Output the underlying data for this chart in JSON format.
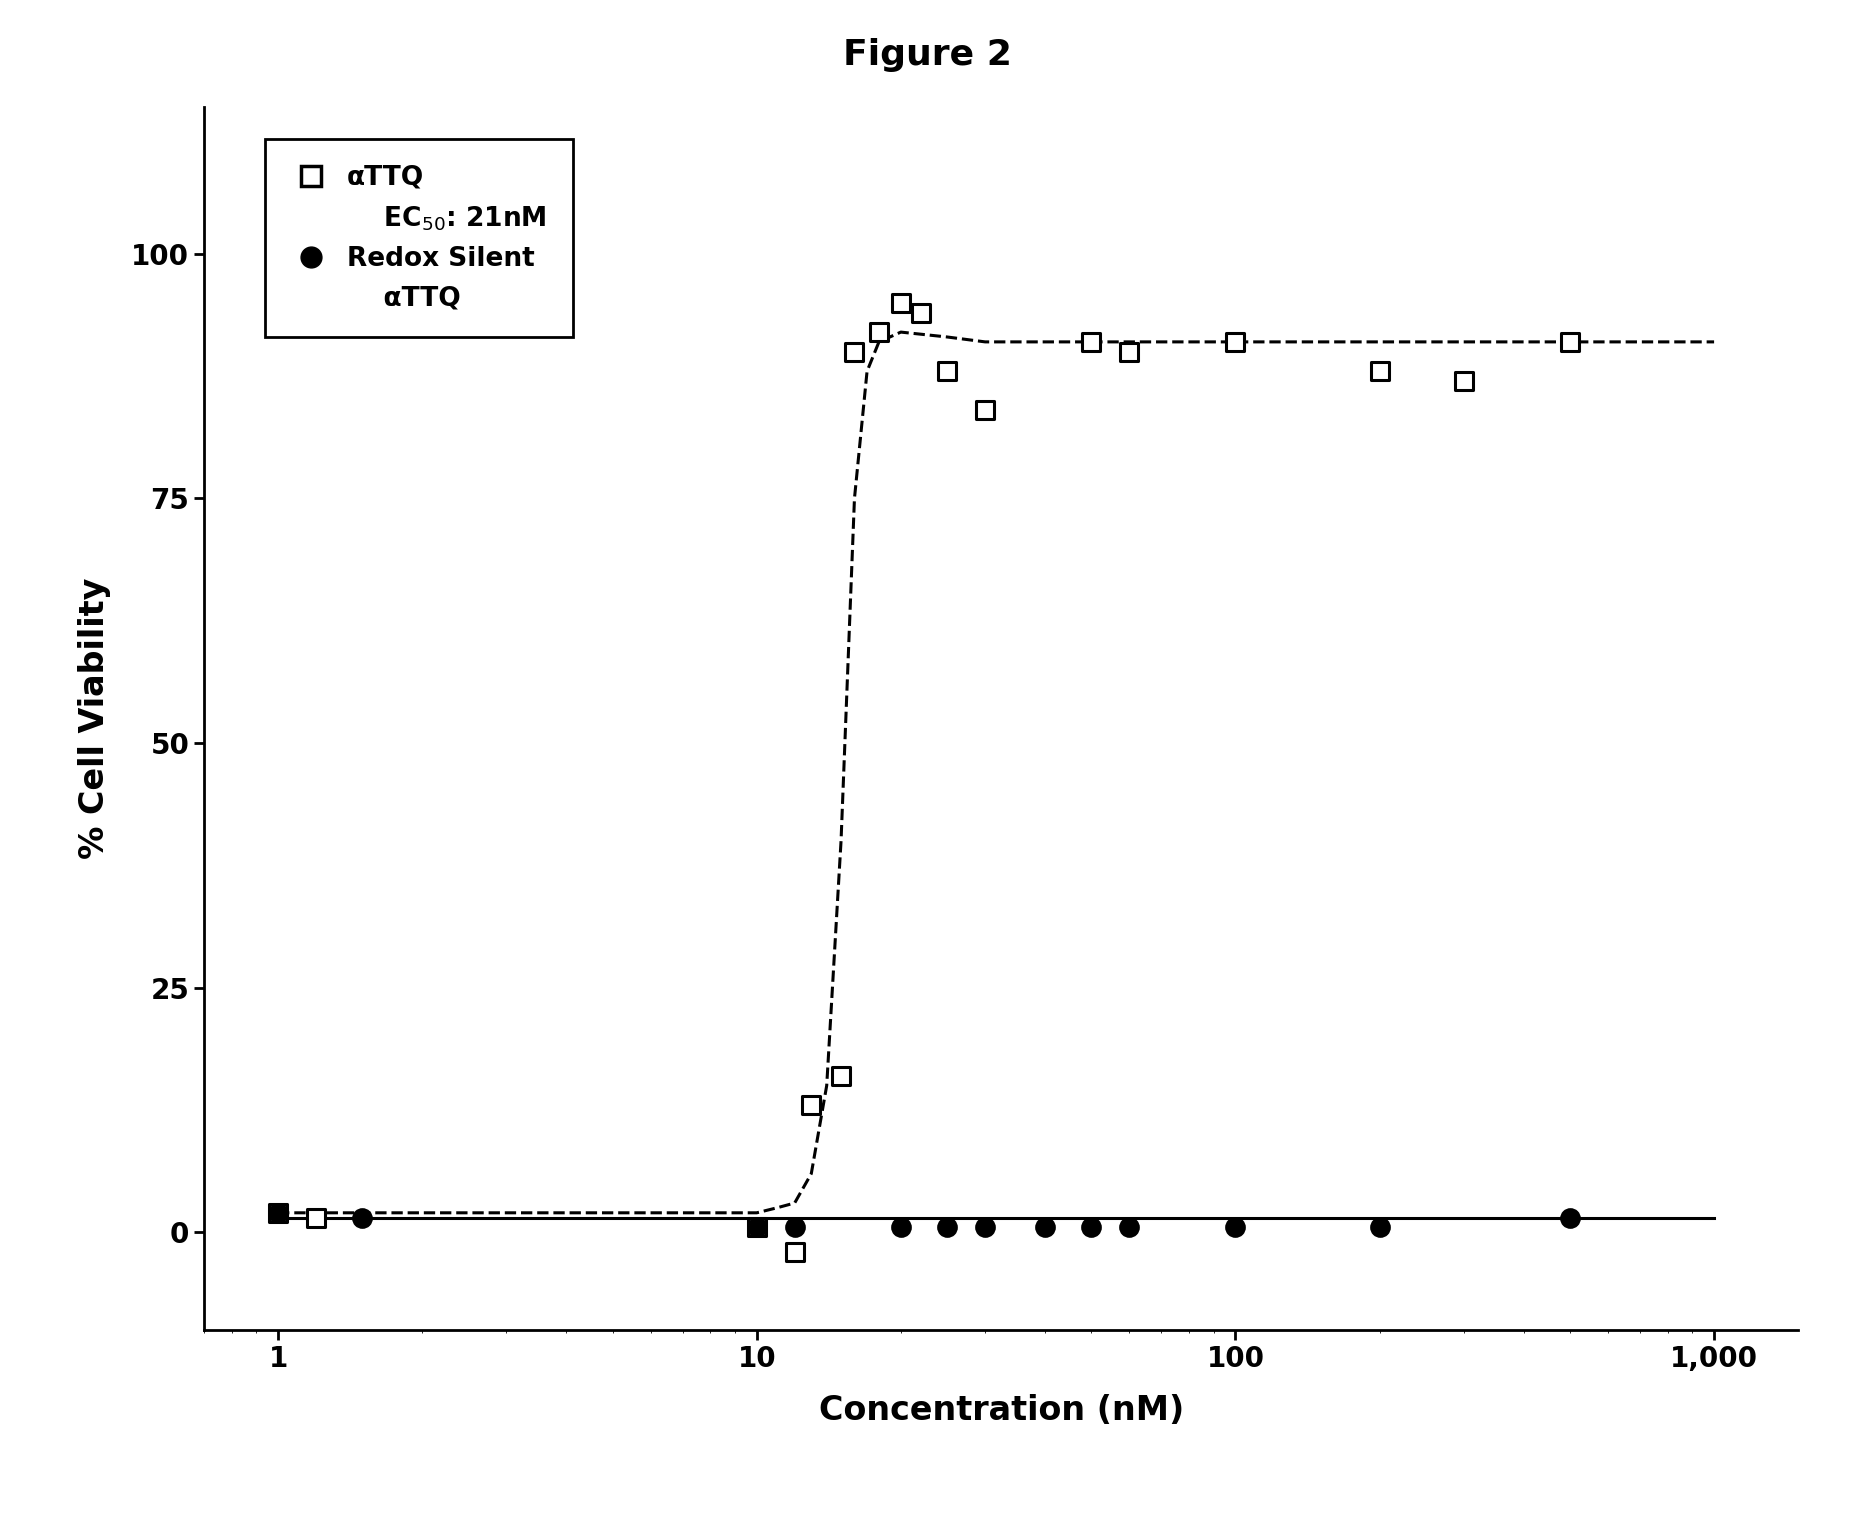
{
  "title": "Figure 2",
  "xlabel": "Concentration (nM)",
  "ylabel": "% Cell Viability",
  "ylim": [
    -10,
    115
  ],
  "yticks": [
    0,
    25,
    50,
    75,
    100
  ],
  "xtick_positions": [
    1,
    10,
    100,
    1000
  ],
  "xtick_labels": [
    "1",
    "10",
    "100",
    "1,000"
  ],
  "attq_scatter_x": [
    1.0,
    1.2,
    10.0,
    12.0,
    13.0,
    15.0,
    16.0,
    18.0,
    20.0,
    22.0,
    25.0,
    30.0,
    50.0,
    60.0,
    100.0,
    200.0,
    300.0,
    500.0
  ],
  "attq_scatter_y": [
    2.0,
    1.5,
    0.5,
    -2.0,
    13.0,
    16.0,
    90.0,
    92.0,
    95.0,
    94.0,
    88.0,
    84.0,
    91.0,
    90.0,
    91.0,
    88.0,
    87.0,
    91.0
  ],
  "redox_scatter_x": [
    1.0,
    1.5,
    10.0,
    12.0,
    20.0,
    25.0,
    30.0,
    40.0,
    50.0,
    60.0,
    100.0,
    200.0,
    500.0
  ],
  "redox_scatter_y": [
    2.0,
    1.5,
    0.5,
    0.5,
    0.5,
    0.5,
    0.5,
    0.5,
    0.5,
    0.5,
    0.5,
    0.5,
    1.5
  ],
  "attq_curve_x": [
    1.0,
    2.0,
    5.0,
    8.0,
    10.0,
    11.0,
    12.0,
    13.0,
    14.0,
    15.0,
    16.0,
    17.0,
    18.0,
    20.0,
    25.0,
    30.0,
    50.0,
    100.0,
    200.0,
    500.0,
    1000.0
  ],
  "attq_curve_y": [
    2.0,
    2.0,
    2.0,
    2.0,
    2.0,
    2.5,
    3.0,
    6.0,
    15.0,
    40.0,
    75.0,
    88.0,
    91.0,
    92.0,
    91.5,
    91.0,
    91.0,
    91.0,
    91.0,
    91.0,
    91.0
  ],
  "redox_curve_x": [
    1.0,
    2.0,
    5.0,
    10.0,
    20.0,
    30.0,
    50.0,
    100.0,
    200.0,
    500.0,
    1000.0
  ],
  "redox_curve_y": [
    1.5,
    1.5,
    1.5,
    1.5,
    1.5,
    1.5,
    1.5,
    1.5,
    1.5,
    1.5,
    1.5
  ],
  "bg_color": "#ffffff",
  "title_fontsize": 26,
  "axis_label_fontsize": 24,
  "tick_fontsize": 20,
  "legend_fontsize": 19
}
